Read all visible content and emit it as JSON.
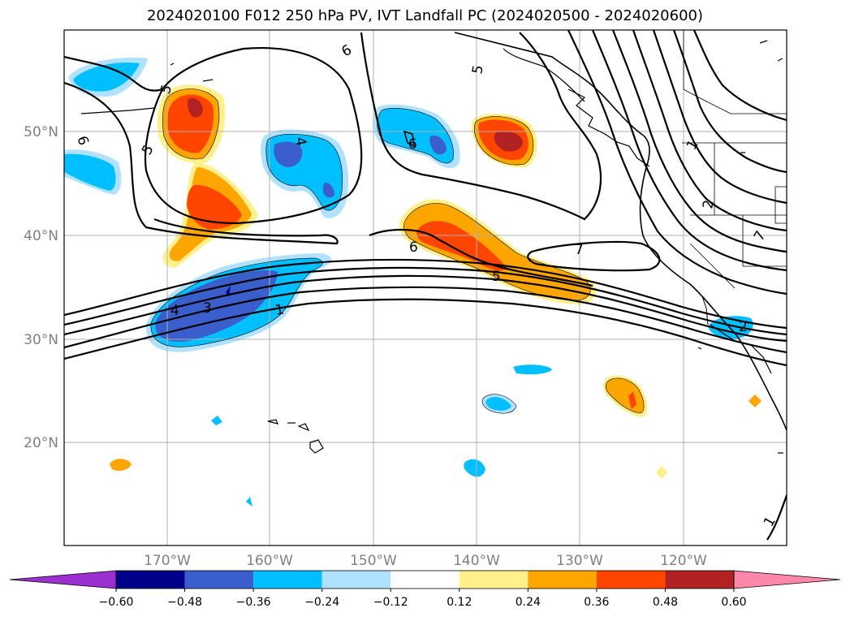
{
  "title": "2024020100 F012 250 hPa PV, IVT Landfall PC (2024020500 - 2024020600)",
  "latitude_labels": [
    "50°N",
    "40°N",
    "30°N",
    "20°N"
  ],
  "longitude_labels": [
    "170°W",
    "160°W",
    "150°W",
    "140°W",
    "130°W",
    "120°W"
  ],
  "colorbar": {
    "tick_labels": [
      "−0.60",
      "−0.48",
      "−0.36",
      "−0.24",
      "−0.12",
      "0.12",
      "0.24",
      "0.36",
      "0.48",
      "0.60"
    ],
    "colors": [
      "#9b30d0",
      "#00008b",
      "#3a5fcd",
      "#00bfff",
      "#b0e2ff",
      "#ffffff",
      "#fff08c",
      "#ffa500",
      "#ff4500",
      "#b22222",
      "#ff88aa"
    ]
  },
  "contour_labels": [
    "6",
    "5",
    "4",
    "6",
    "5",
    "6",
    "5",
    "7",
    "6",
    "4",
    "3",
    "1",
    "1",
    "2",
    "7",
    "2",
    "1",
    "5"
  ],
  "colors": {
    "grid": "#b0b0b0",
    "coast": "#000000",
    "contour": "#000000"
  }
}
